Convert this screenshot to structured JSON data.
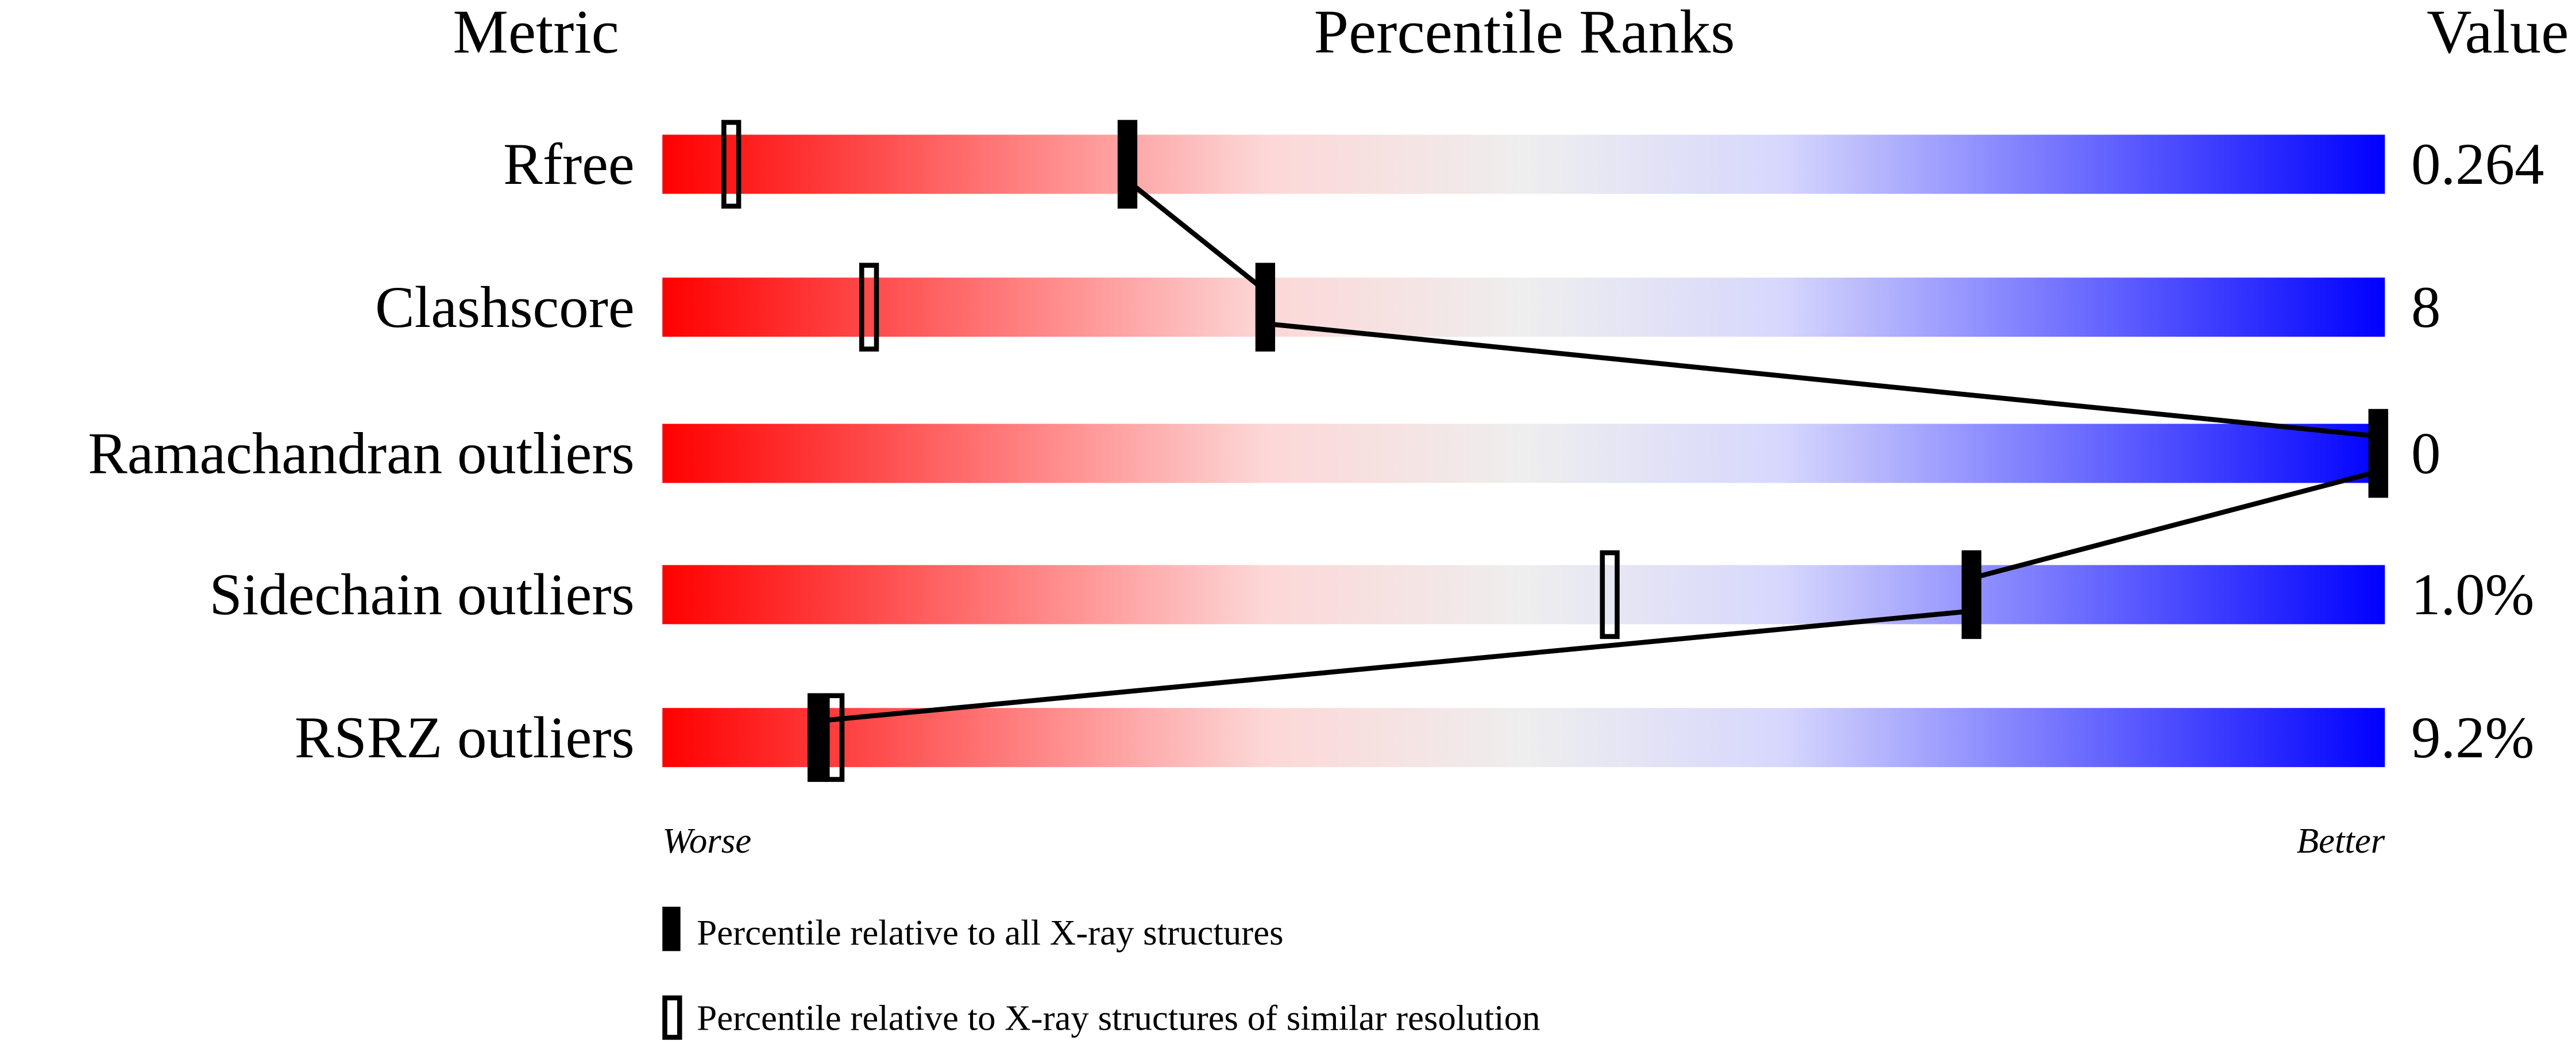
{
  "chart_data": {
    "type": "percentile-slider",
    "headers": {
      "metric": "Metric",
      "ranks": "Percentile Ranks",
      "value": "Value"
    },
    "axis": {
      "left": "Worse",
      "right": "Better",
      "range": [
        0,
        100
      ]
    },
    "gradient_colors": [
      "#ff0000",
      "#fdd7d7",
      "#eeeeee",
      "#d7d7fd",
      "#0000ff"
    ],
    "metrics": [
      {
        "name": "Rfree",
        "value": "0.264",
        "percentile_all": 27,
        "percentile_similar": 4
      },
      {
        "name": "Clashscore",
        "value": "8",
        "percentile_all": 35,
        "percentile_similar": 12
      },
      {
        "name": "Ramachandran outliers",
        "value": "0",
        "percentile_all": 100,
        "percentile_similar": 100
      },
      {
        "name": "Sidechain outliers",
        "value": "1.0%",
        "percentile_all": 76,
        "percentile_similar": 55
      },
      {
        "name": "RSRZ outliers",
        "value": "9.2%",
        "percentile_all": 9,
        "percentile_similar": 10
      }
    ],
    "legend": [
      {
        "marker": "filled",
        "label": "Percentile relative to all X-ray structures"
      },
      {
        "marker": "open",
        "label": "Percentile relative to X-ray structures of similar resolution"
      }
    ]
  }
}
